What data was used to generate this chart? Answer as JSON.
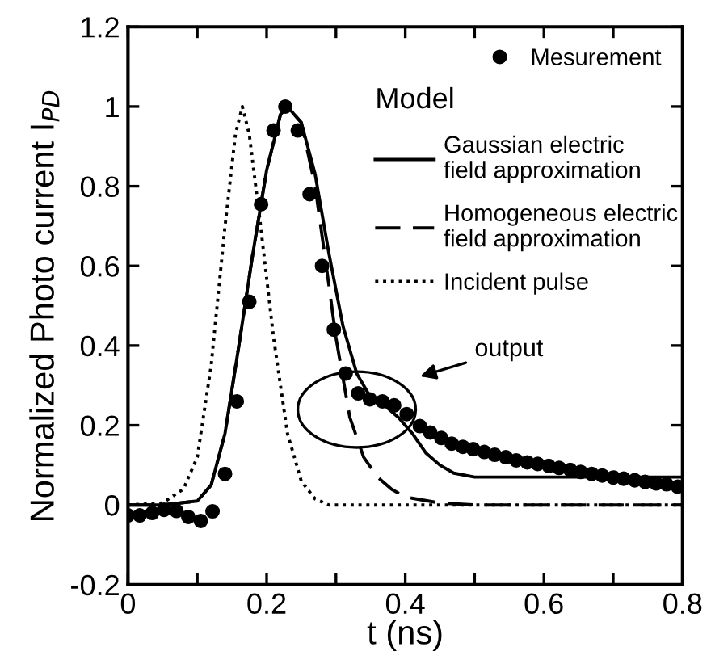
{
  "chart_data": {
    "type": "line",
    "xlabel": "t (ns)",
    "ylabel": "Normalized Photo current I$_{PD}$",
    "legend_title": "Model",
    "xlim": [
      0,
      0.8
    ],
    "ylim": [
      -0.2,
      1.2
    ],
    "xticks": [
      0,
      {
        "value": 0.1,
        "label": null
      },
      0.2,
      {
        "value": 0.3,
        "label": null
      },
      0.4,
      {
        "value": 0.5,
        "label": null
      },
      0.6,
      {
        "value": 0.7,
        "label": null
      },
      0.8
    ],
    "yticks": [
      {
        "value": -0.2,
        "label": "-0.2"
      },
      0,
      0.2,
      0.4,
      0.6,
      0.8,
      1,
      1.2
    ],
    "grid": false,
    "legend": "top right",
    "series": [
      {
        "name": "Mesurement",
        "type": "scatter",
        "marker": "circle",
        "color": "#000000",
        "x": [
          0,
          0.017,
          0.035,
          0.052,
          0.07,
          0.087,
          0.105,
          0.122,
          0.14,
          0.157,
          0.175,
          0.192,
          0.21,
          0.227,
          0.245,
          0.262,
          0.28,
          0.297,
          0.314,
          0.332,
          0.349,
          0.367,
          0.384,
          0.402,
          0.421,
          0.436,
          0.452,
          0.467,
          0.483,
          0.498,
          0.514,
          0.529,
          0.545,
          0.56,
          0.576,
          0.591,
          0.607,
          0.622,
          0.638,
          0.653,
          0.669,
          0.684,
          0.7,
          0.715,
          0.731,
          0.746,
          0.762,
          0.777,
          0.793
        ],
        "values": [
          -0.026,
          -0.026,
          -0.02,
          -0.012,
          -0.015,
          -0.03,
          -0.04,
          -0.016,
          0.078,
          0.26,
          0.51,
          0.755,
          0.94,
          1.0,
          0.94,
          0.78,
          0.6,
          0.44,
          0.33,
          0.28,
          0.265,
          0.26,
          0.25,
          0.228,
          0.198,
          0.182,
          0.168,
          0.154,
          0.146,
          0.14,
          0.133,
          0.126,
          0.12,
          0.112,
          0.107,
          0.103,
          0.098,
          0.093,
          0.088,
          0.083,
          0.078,
          0.074,
          0.069,
          0.066,
          0.062,
          0.058,
          0.054,
          0.052,
          0.046
        ]
      },
      {
        "name": "Gaussian electric\nfield approximation",
        "line_style": "solid",
        "color": "#000000",
        "x": [
          0,
          0.05,
          0.1,
          0.12,
          0.14,
          0.16,
          0.18,
          0.2,
          0.22,
          0.23,
          0.25,
          0.27,
          0.29,
          0.31,
          0.33,
          0.35,
          0.37,
          0.39,
          0.41,
          0.43,
          0.45,
          0.47,
          0.5,
          0.6,
          0.8
        ],
        "values": [
          0,
          0,
          0.01,
          0.05,
          0.18,
          0.4,
          0.63,
          0.84,
          0.98,
          1.0,
          0.96,
          0.83,
          0.63,
          0.45,
          0.33,
          0.27,
          0.25,
          0.22,
          0.18,
          0.13,
          0.1,
          0.08,
          0.07,
          0.07,
          0.07
        ]
      },
      {
        "name": "Homogeneous electric\nfield approximation",
        "line_style": "dashed",
        "color": "#000000",
        "x": [
          0,
          0.05,
          0.1,
          0.12,
          0.14,
          0.16,
          0.18,
          0.2,
          0.22,
          0.23,
          0.25,
          0.27,
          0.29,
          0.3,
          0.32,
          0.34,
          0.36,
          0.38,
          0.4,
          0.45,
          0.5,
          0.8
        ],
        "values": [
          0,
          0,
          0.01,
          0.05,
          0.18,
          0.4,
          0.63,
          0.84,
          0.98,
          1.0,
          0.96,
          0.8,
          0.55,
          0.42,
          0.22,
          0.12,
          0.07,
          0.04,
          0.02,
          0.005,
          0,
          0
        ]
      },
      {
        "name": "Incident pulse",
        "line_style": "dotted",
        "color": "#000000",
        "x": [
          0,
          0.05,
          0.08,
          0.1,
          0.12,
          0.14,
          0.155,
          0.165,
          0.175,
          0.19,
          0.21,
          0.23,
          0.25,
          0.27,
          0.29,
          0.8
        ],
        "values": [
          0,
          0.005,
          0.04,
          0.12,
          0.35,
          0.7,
          0.93,
          1.0,
          0.93,
          0.72,
          0.42,
          0.18,
          0.06,
          0.015,
          0,
          0
        ]
      }
    ],
    "annotations": [
      "output"
    ]
  }
}
